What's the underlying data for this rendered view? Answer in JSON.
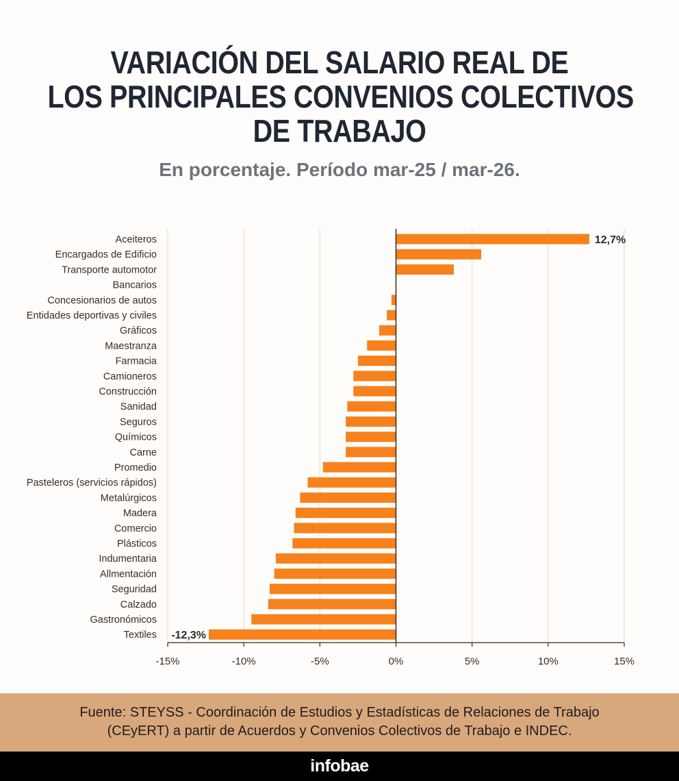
{
  "header": {
    "title_lines": [
      "VARIACIÓN DEL SALARIO REAL DE",
      "LOS PRINCIPALES CONVENIOS COLECTIVOS",
      "DE TRABAJO"
    ],
    "subtitle": "En porcentaje. Período mar-25 / mar-26."
  },
  "chart_data": {
    "type": "bar",
    "orientation": "horizontal",
    "categories": [
      "Aceiteros",
      "Encargados de Edificio",
      "Transporte automotor",
      "Bancarios",
      "Concesionarios de autos",
      "Entidades deportivas y civiles",
      "Gráficos",
      "Maestranza",
      "Farmacia",
      "Camioneros",
      "Construcción",
      "Sanidad",
      "Seguros",
      "Químicos",
      "Carne",
      "Promedio",
      "Pasteleros (servicios rápidos)",
      "Metalúrgicos",
      "Madera",
      "Comercio",
      "Plásticos",
      "Indumentaria",
      "Allmentación",
      "Seguridad",
      "Calzado",
      "Gastronómicos",
      "Textiles"
    ],
    "values": [
      12.7,
      5.6,
      3.8,
      0.0,
      -0.3,
      -0.6,
      -1.1,
      -1.9,
      -2.5,
      -2.8,
      -2.8,
      -3.2,
      -3.3,
      -3.3,
      -3.3,
      -4.8,
      -5.8,
      -6.3,
      -6.6,
      -6.7,
      -6.8,
      -7.9,
      -8.0,
      -8.3,
      -8.4,
      -9.5,
      -12.3
    ],
    "data_labels": {
      "Aceiteros": "12,7%",
      "Textiles": "-12,3%"
    },
    "x_ticks": [
      -15,
      -10,
      -5,
      0,
      5,
      10,
      15
    ],
    "x_tick_labels": [
      "-15%",
      "-10%",
      "-5%",
      "0%",
      "5%",
      "10%",
      "15%"
    ],
    "xlim": [
      -15,
      15
    ],
    "grid": true,
    "bar_color": "#f7821d"
  },
  "footer": {
    "source_lines": [
      "Fuente: STEYSS - Coordinación de Estudios y Estadísticas de Relaciones de Trabajo",
      "(CEyERT) a partir de Acuerdos y Convenios Colectivos de Trabajo e INDEC."
    ],
    "brand": "infobae"
  }
}
